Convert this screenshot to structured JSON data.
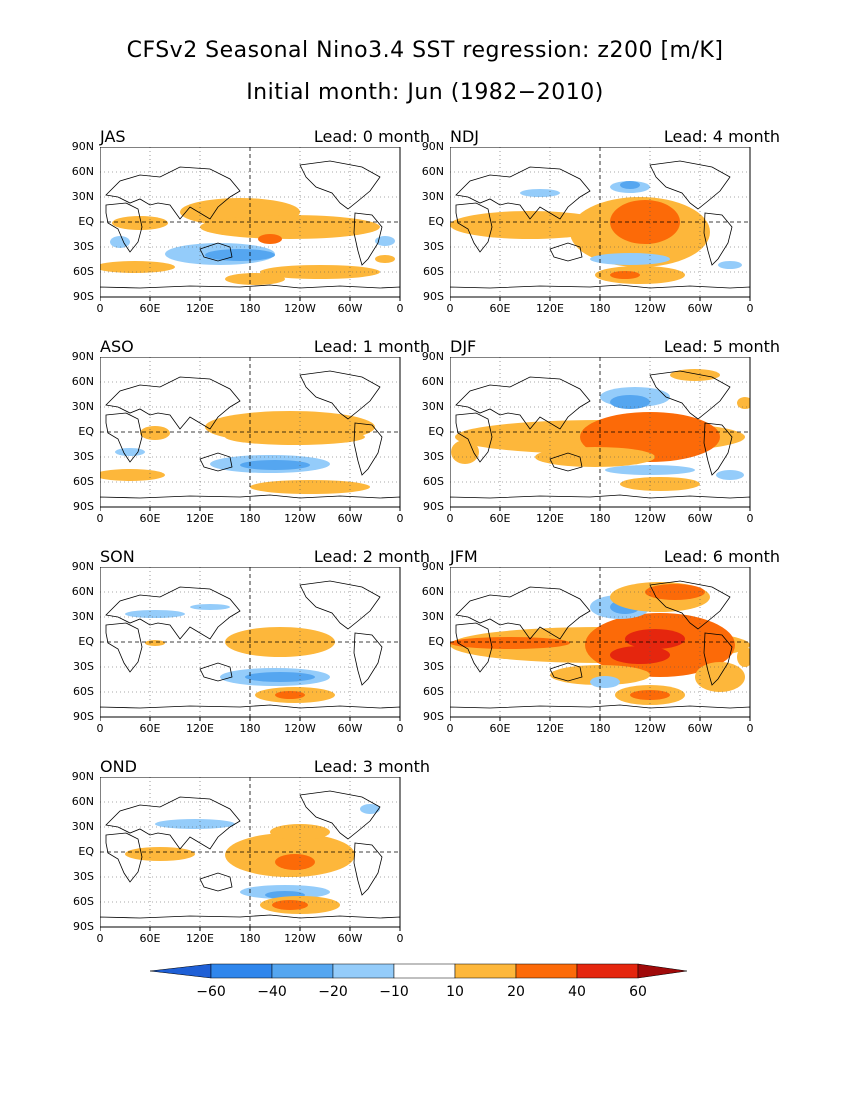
{
  "title": "CFSv2 Seasonal Nino3.4 SST regression: z200 [m/K]",
  "subtitle": "Initial month: Jun (1982−2010)",
  "lat_labels": [
    "90N",
    "60N",
    "30N",
    "EQ",
    "30S",
    "60S",
    "90S"
  ],
  "lon_labels": [
    "0",
    "60E",
    "120E",
    "180",
    "120W",
    "60W",
    "0"
  ],
  "panels": [
    {
      "season": "JAS",
      "lead": "Lead: 0 month"
    },
    {
      "season": "NDJ",
      "lead": "Lead: 4 month"
    },
    {
      "season": "ASO",
      "lead": "Lead: 1 month"
    },
    {
      "season": "DJF",
      "lead": "Lead: 5 month"
    },
    {
      "season": "SON",
      "lead": "Lead: 2 month"
    },
    {
      "season": "JFM",
      "lead": "Lead: 6 month"
    },
    {
      "season": "OND",
      "lead": "Lead: 3 month"
    }
  ],
  "colorbar": {
    "labels": [
      "−60",
      "−40",
      "−20",
      "−10",
      "10",
      "20",
      "40",
      "60"
    ],
    "colors": [
      "#1e5fd6",
      "#2f86ec",
      "#55a6f0",
      "#94ccfa",
      "#ffffff",
      "#fdb73b",
      "#fc6a08",
      "#e5260e",
      "#a00a0a"
    ]
  },
  "colors": {
    "neg10": "#94ccfa",
    "neg20": "#55a6f0",
    "neg40": "#2f86ec",
    "pos10": "#fdb73b",
    "pos20": "#fc6a08",
    "pos40": "#e5260e"
  }
}
